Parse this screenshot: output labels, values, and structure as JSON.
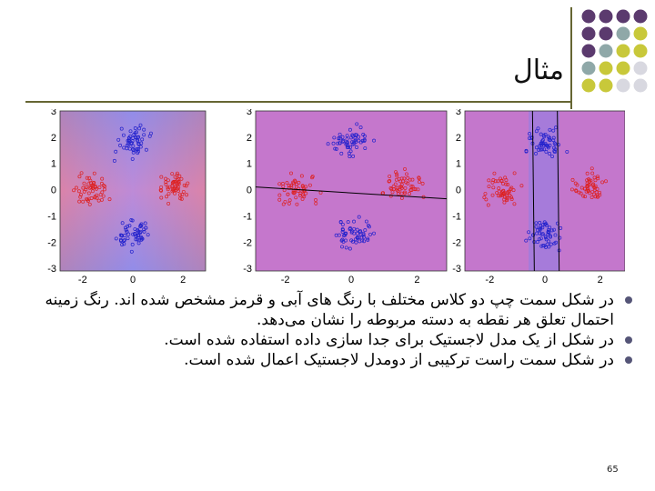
{
  "slide": {
    "title": "مثال",
    "bullets": [
      "در شکل سمت چپ دو کلاس مختلف با رنگ های آبی و قرمز مشخص شده اند. رنگ زمینه احتمال تعلق هر نقطه به دسته مربوطه را نشان می‌دهد.",
      "در شکل از یک مدل لاجستیک برای جدا سازی داده استفاده شده است.",
      "در شکل سمت راست ترکیبی از دومدل لاجستیک اعمال شده است."
    ],
    "page_number": "65"
  },
  "figure": {
    "y_ticks": [
      "3",
      "2",
      "1",
      "0",
      "-1",
      "-2",
      "-3"
    ],
    "x_ticks": [
      "-2",
      "0",
      "2"
    ],
    "colors": {
      "blue_class": "#2222cc",
      "red_class": "#dd2222",
      "mixed_bg": "#bb66cc"
    }
  },
  "decoration": {
    "dot_colors": [
      "#5b3a6e",
      "#c8c83a",
      "#8fa8a8",
      "#d8d8e0"
    ]
  }
}
